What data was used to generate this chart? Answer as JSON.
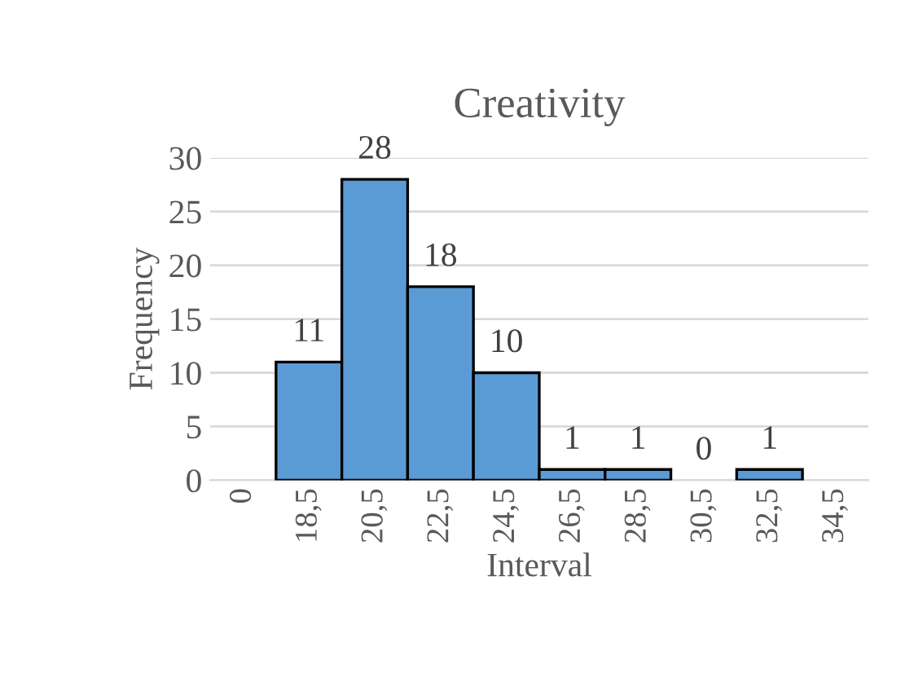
{
  "chart_data": {
    "type": "bar",
    "title": "Creativity",
    "xlabel": "Interval",
    "ylabel": "Frequency",
    "categories": [
      "0",
      "18,5",
      "20,5",
      "22,5",
      "24,5",
      "26,5",
      "28,5",
      "30,5",
      "32,5",
      "34,5"
    ],
    "values": [
      null,
      11,
      28,
      18,
      10,
      1,
      1,
      0,
      1,
      null
    ],
    "value_labels": [
      null,
      "11",
      "28",
      "18",
      "10",
      "1",
      "1",
      "0",
      "1",
      null
    ],
    "color": "#5b9bd5",
    "ylim": [
      0,
      30
    ],
    "yticks": [
      0,
      5,
      10,
      15,
      20,
      25,
      30
    ],
    "grid": "y",
    "legend": false
  }
}
